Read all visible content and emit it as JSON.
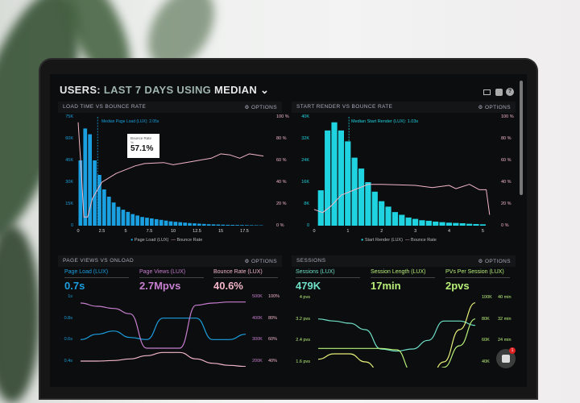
{
  "header": {
    "title_parts": [
      "USERS:",
      "LAST 7 DAYS",
      "USING",
      "MEDIAN"
    ],
    "icons": [
      "monitor-icon",
      "share-icon",
      "help-icon"
    ]
  },
  "options_label": "OPTIONS",
  "colors": {
    "blue": "#1a9fe0",
    "cyan": "#1fd3e0",
    "pink": "#f2b6c8",
    "purple": "#c77fd0",
    "teal": "#6fe0c8",
    "green": "#b8f07a",
    "yellow": "#e8f07a"
  },
  "panels": {
    "load": {
      "title": "LOAD TIME VS BOUNCE RATE",
      "median_label": "Median Page Load (LUX): 2.05s",
      "tooltip_label": "Bounce Rate",
      "tooltip_sub": "%",
      "tooltip_value": "57.1%",
      "left_ticks": [
        "0",
        "15K",
        "30K",
        "45K",
        "60K",
        "75K"
      ],
      "right_ticks": [
        "0 %",
        "20 %",
        "40 %",
        "60 %",
        "80 %",
        "100 %"
      ],
      "x_ticks": [
        "0",
        "2.5",
        "5",
        "7.5",
        "10",
        "12.5",
        "15",
        "17.5"
      ],
      "legend": [
        "Page Load (LUX)",
        "Bounce Rate"
      ]
    },
    "render": {
      "title": "START RENDER VS BOUNCE RATE",
      "median_label": "Median Start Render (LUX): 1.03s",
      "left_ticks": [
        "0",
        "8K",
        "16K",
        "24K",
        "32K",
        "40K"
      ],
      "right_ticks": [
        "0 %",
        "20 %",
        "40 %",
        "60 %",
        "80 %",
        "100 %"
      ],
      "x_ticks": [
        "0",
        "1",
        "2",
        "3",
        "4",
        "5"
      ],
      "legend": [
        "Start Render (LUX)",
        "Bounce Rate"
      ]
    },
    "pageviews": {
      "title": "PAGE VIEWS VS ONLOAD",
      "kpis": [
        {
          "label": "Page Load (LUX)",
          "value": "0.7s"
        },
        {
          "label": "Page Views (LUX)",
          "value": "2.7Mpvs"
        },
        {
          "label": "Bounce Rate (LUX)",
          "value": "40.6%"
        }
      ],
      "left_ticks": [
        "1s",
        "0.8s",
        "0.6s",
        "0.4s"
      ],
      "right_ticks_a": [
        "500K",
        "400K",
        "300K",
        "200K"
      ],
      "right_ticks_b": [
        "100%",
        "80%",
        "60%",
        "40%"
      ]
    },
    "sessions": {
      "title": "SESSIONS",
      "kpis": [
        {
          "label": "Sessions (LUX)",
          "value": "479K"
        },
        {
          "label": "Session Length (LUX)",
          "value": "17min"
        },
        {
          "label": "PVs Per Session (LUX)",
          "value": "2pvs"
        }
      ],
      "left_ticks": [
        "4 pvs",
        "3.2 pvs",
        "2.4 pvs",
        "1.6 pvs"
      ],
      "right_ticks_a": [
        "100K",
        "80K",
        "60K",
        "40K"
      ],
      "right_ticks_b": [
        "40 min",
        "32 min",
        "24 min",
        ""
      ]
    }
  },
  "chat": {
    "badge": "1"
  },
  "chart_data": [
    {
      "type": "bar",
      "title": "LOAD TIME VS BOUNCE RATE",
      "xlim": [
        0,
        20
      ],
      "ylim": [
        0,
        75000
      ],
      "y2lim": [
        0,
        100
      ],
      "bar_width": 0.5,
      "series": [
        {
          "name": "Page Load (LUX)",
          "x_start": 0,
          "values": [
            45000,
            67000,
            63000,
            45000,
            35000,
            25000,
            20000,
            16000,
            13000,
            11000,
            9500,
            8000,
            7000,
            6000,
            5500,
            5000,
            4500,
            4000,
            3500,
            3000,
            2700,
            2400,
            2100,
            1800,
            1600,
            1400,
            1200,
            1000,
            900,
            800,
            700,
            600,
            550,
            500,
            450,
            400,
            350,
            300,
            250
          ]
        },
        {
          "name": "Bounce Rate",
          "type": "line",
          "points": [
            [
              0,
              95
            ],
            [
              0.3,
              55
            ],
            [
              0.6,
              8
            ],
            [
              1,
              8
            ],
            [
              1.5,
              25
            ],
            [
              2.5,
              40
            ],
            [
              4,
              48
            ],
            [
              6,
              55
            ],
            [
              7,
              57.1
            ],
            [
              9,
              58
            ],
            [
              10,
              56
            ],
            [
              12,
              59
            ],
            [
              14,
              62
            ],
            [
              15,
              66
            ],
            [
              16,
              65
            ],
            [
              17,
              62
            ],
            [
              18,
              66
            ],
            [
              19.5,
              64
            ]
          ]
        }
      ]
    },
    {
      "type": "bar",
      "title": "START RENDER VS BOUNCE RATE",
      "xlim": [
        0,
        5.3
      ],
      "ylim": [
        0,
        40000
      ],
      "y2lim": [
        0,
        100
      ],
      "bar_width": 0.2,
      "series": [
        {
          "name": "Start Render (LUX)",
          "x_start": 0.1,
          "values": [
            13000,
            35000,
            38000,
            35000,
            31000,
            25000,
            21000,
            16000,
            12500,
            9000,
            7000,
            5000,
            4000,
            3000,
            2500,
            2000,
            1800,
            1500,
            1300,
            1100,
            1000,
            900,
            700,
            600,
            500
          ]
        },
        {
          "name": "Bounce Rate",
          "type": "line",
          "points": [
            [
              0,
              15
            ],
            [
              0.25,
              12
            ],
            [
              0.5,
              18
            ],
            [
              0.8,
              28
            ],
            [
              1.2,
              33
            ],
            [
              1.6,
              38
            ],
            [
              2,
              38
            ],
            [
              3,
              37
            ],
            [
              3.5,
              35
            ],
            [
              4,
              37
            ],
            [
              4.2,
              34
            ],
            [
              4.6,
              38
            ],
            [
              4.9,
              33
            ],
            [
              5.1,
              33
            ],
            [
              5.2,
              10
            ]
          ]
        }
      ]
    },
    {
      "type": "line",
      "title": "PAGE VIEWS VS ONLOAD",
      "series": [
        {
          "name": "Page Load (LUX)",
          "axis": "left",
          "range": [
            0.4,
            1
          ],
          "values": [
            0.6,
            0.65,
            0.68,
            0.62,
            0.6,
            0.8,
            0.8,
            0.8,
            0.6,
            0.6,
            0.65
          ]
        },
        {
          "name": "Page Views (LUX)",
          "axis": "right_a",
          "range": [
            200000,
            500000
          ],
          "values": [
            470000,
            455000,
            445000,
            420000,
            260000,
            260000,
            260000,
            460000,
            470000,
            475000,
            475000
          ]
        },
        {
          "name": "Bounce Rate (LUX)",
          "axis": "right_b",
          "range": [
            40,
            100
          ],
          "values": [
            40,
            40,
            40.5,
            42,
            45,
            48,
            48,
            42,
            38,
            36,
            35
          ]
        }
      ]
    },
    {
      "type": "line",
      "title": "SESSIONS",
      "series": [
        {
          "name": "Sessions (LUX)",
          "axis": "right_a",
          "range": [
            40000,
            100000
          ],
          "values": [
            80000,
            78000,
            76000,
            70000,
            52000,
            50000,
            52000,
            60000,
            78000,
            78000,
            74000
          ]
        },
        {
          "name": "Session Length (LUX)",
          "axis": "right_b",
          "range": [
            16,
            40
          ],
          "values": [
            21,
            21,
            21,
            21,
            21,
            20.5,
            12,
            8,
            14,
            22,
            32
          ]
        },
        {
          "name": "PVs Per Session (LUX)",
          "axis": "left",
          "range": [
            1.6,
            4
          ],
          "values": [
            1.7,
            1.9,
            1.9,
            1.6,
            1.2,
            0.9,
            0.8,
            0.9,
            1.6,
            2.8,
            3.8
          ]
        }
      ]
    }
  ]
}
